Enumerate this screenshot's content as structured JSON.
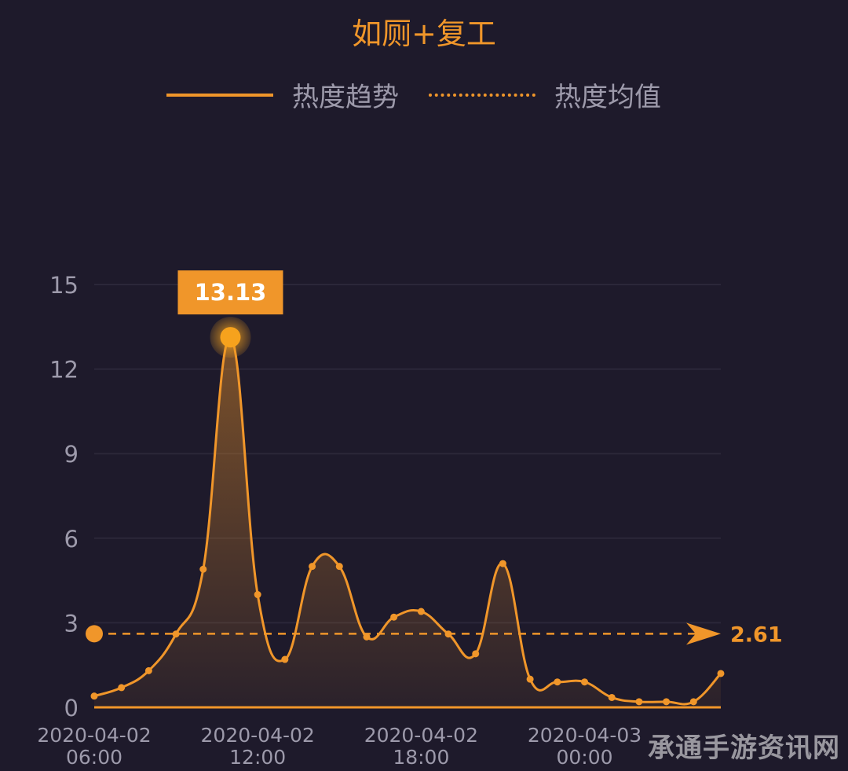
{
  "chart_data": {
    "type": "line",
    "title": "如厕+复工",
    "legend": [
      "热度趋势",
      "热度均值"
    ],
    "legend_position": "top",
    "x_ticks": [
      "2020-04-02 06:00",
      "2020-04-02 12:00",
      "2020-04-02 18:00",
      "2020-04-03 00:00"
    ],
    "ylim": [
      0,
      15
    ],
    "y_ticks": [
      0,
      3,
      6,
      9,
      12,
      15
    ],
    "grid": true,
    "series": [
      {
        "name": "热度趋势",
        "x": [
          0,
          1,
          2,
          3,
          4,
          5,
          6,
          7,
          8,
          9,
          10,
          11,
          12,
          13,
          14,
          15,
          16,
          17,
          18,
          19,
          20,
          21,
          22,
          23
        ],
        "values": [
          0.4,
          0.7,
          1.3,
          2.6,
          4.9,
          13.13,
          4.0,
          1.7,
          5.0,
          5.0,
          2.5,
          3.2,
          3.4,
          2.6,
          1.9,
          5.1,
          1.0,
          0.9,
          0.9,
          0.35,
          0.2,
          0.2,
          0.2,
          1.2
        ]
      }
    ],
    "average": {
      "name": "热度均值",
      "value": 2.61,
      "label": "2.61"
    },
    "peak_label": "13.13",
    "colors": {
      "line": "#f0962a",
      "grid": "#2b2739",
      "axis_text": "#9d9aab",
      "background": "#1e1a2b"
    }
  },
  "watermark": "承通手游资讯网"
}
